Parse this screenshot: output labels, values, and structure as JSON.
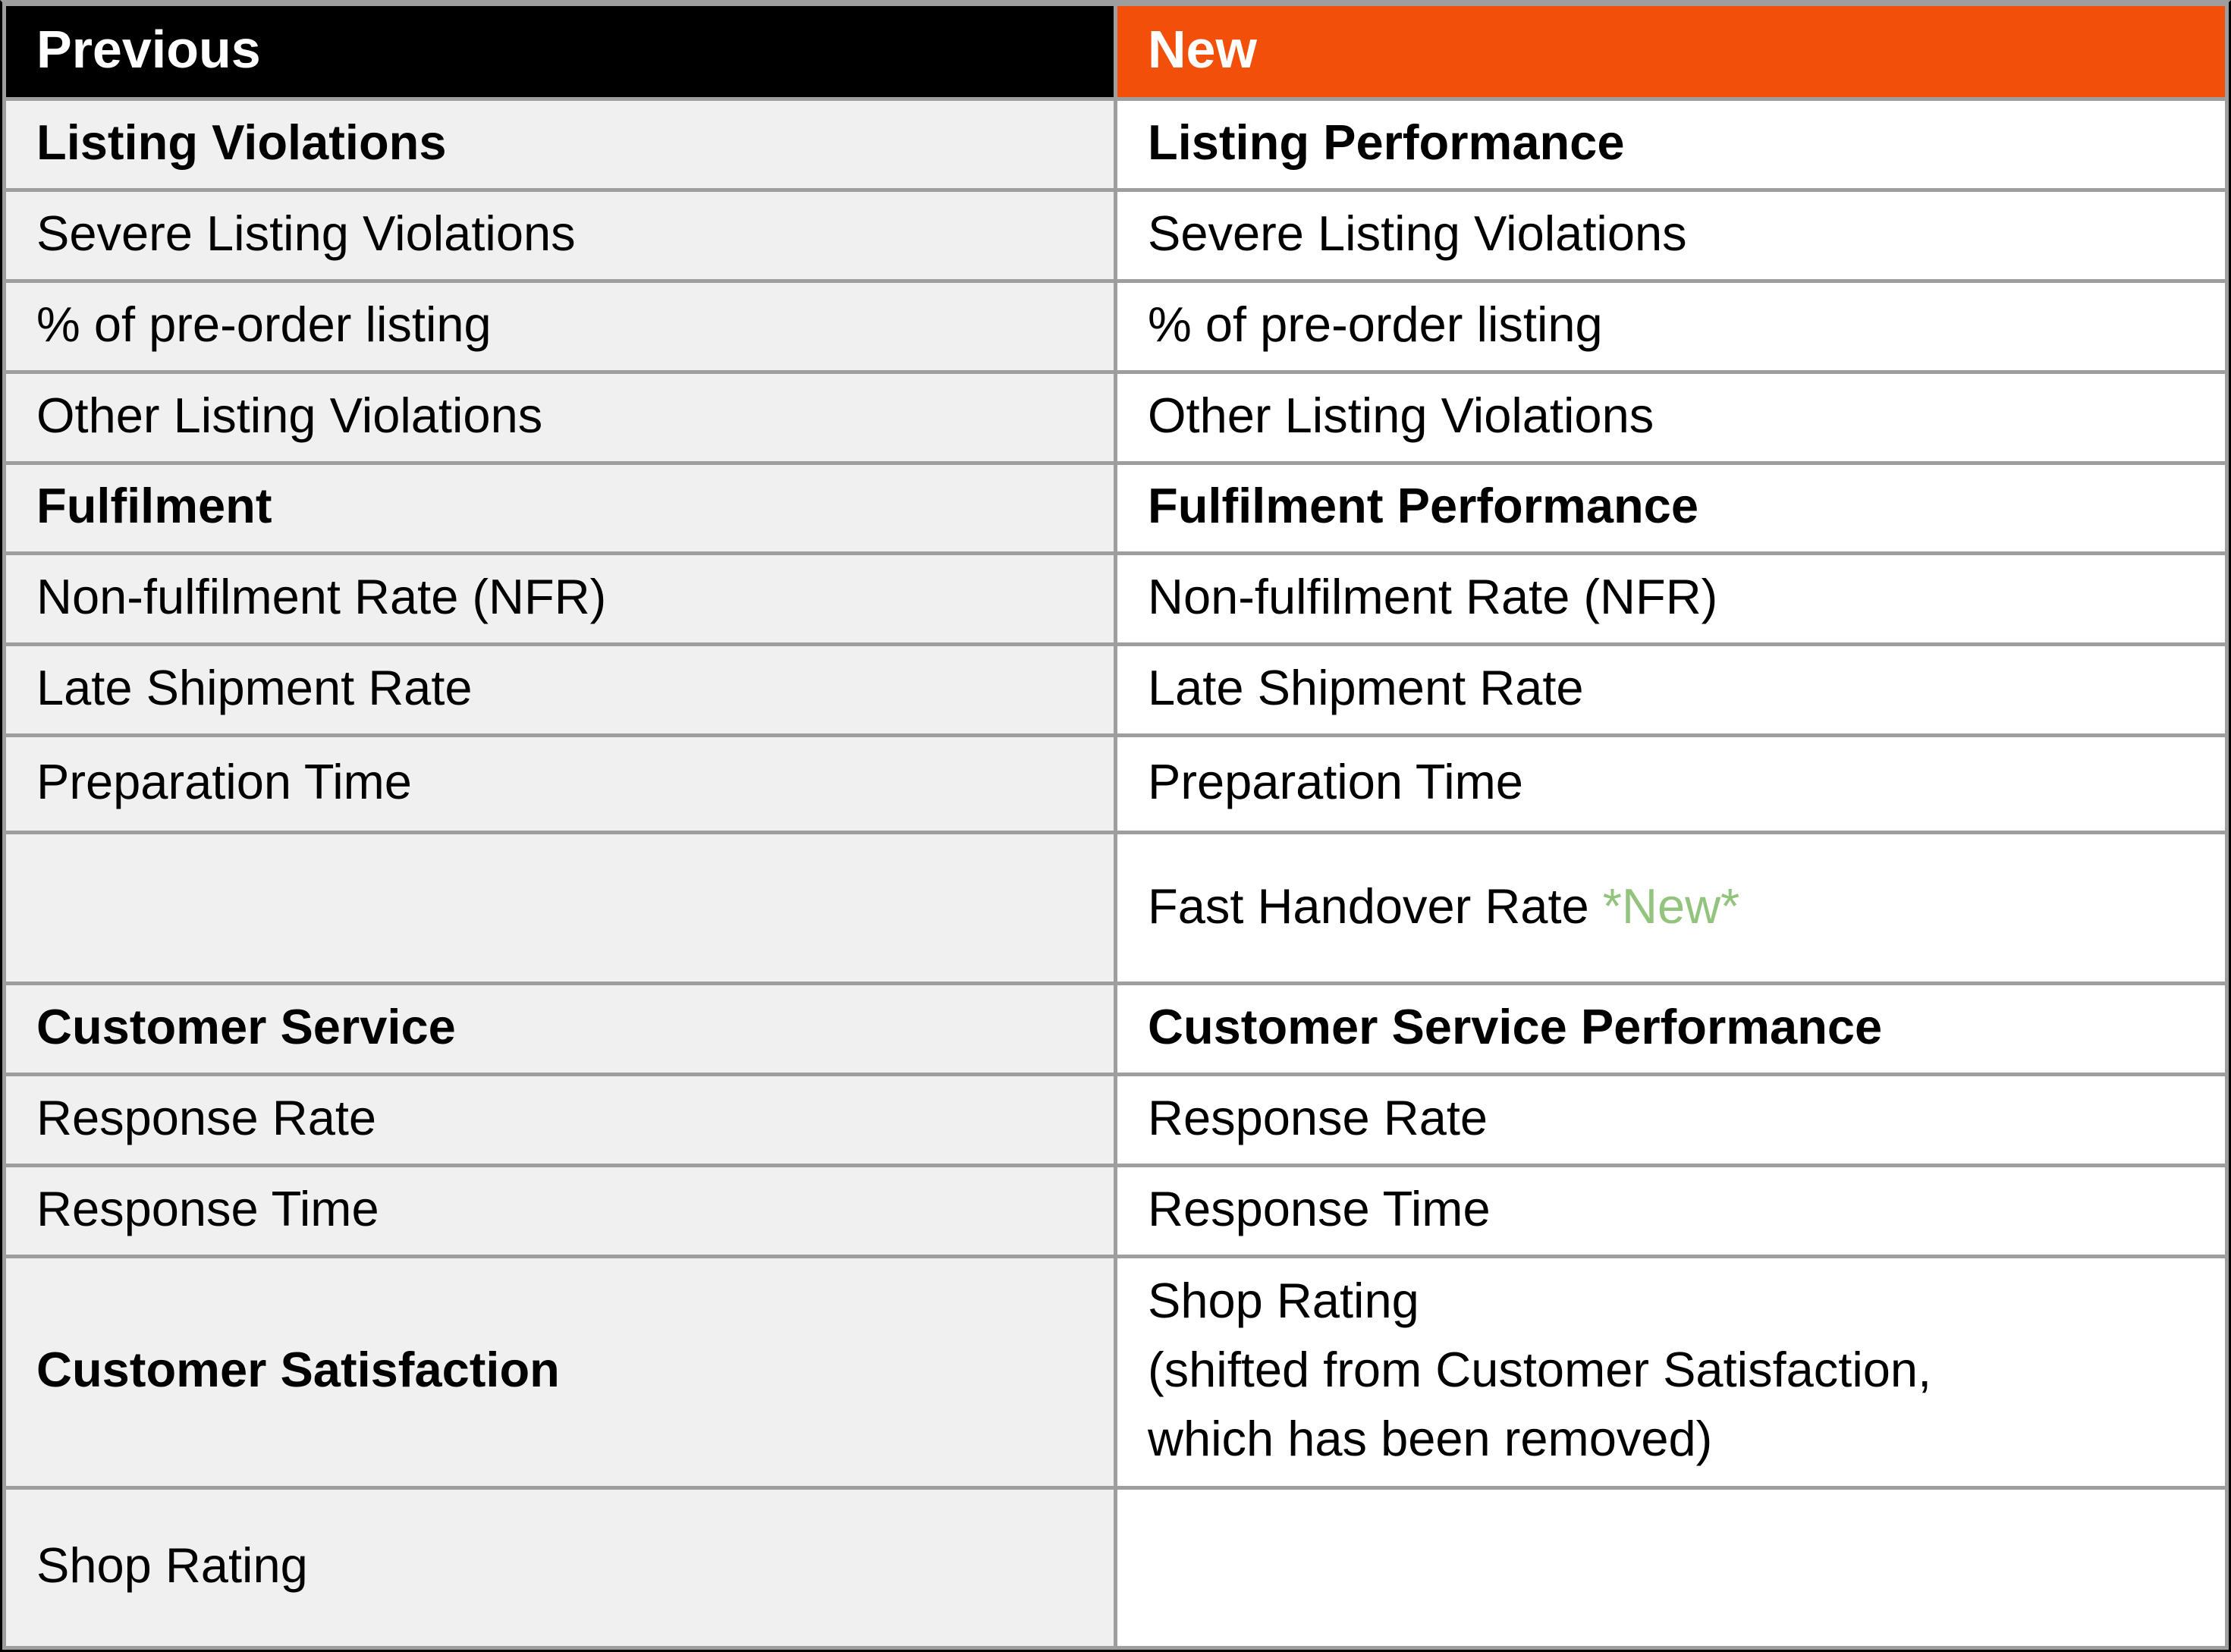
{
  "colors": {
    "header-prev-bg": "#000000",
    "header-new-bg": "#F2500A",
    "header-text": "#FFFFFF",
    "prev-cell-bg": "#F0F0F0",
    "new-cell-bg": "#FFFFFF",
    "grid-border": "#9E9E9E",
    "outer-border": "#000000",
    "text": "#000000",
    "new-badge": "#93C47D"
  },
  "header": {
    "previous": "Previous",
    "new": "New"
  },
  "rows": [
    {
      "prev": "Listing Violations",
      "new": "Listing Performance"
    },
    {
      "prev": "Severe Listing Violations",
      "new": "Severe Listing Violations"
    },
    {
      "prev": "% of pre-order listing",
      "new": "% of pre-order listing"
    },
    {
      "prev": "Other Listing Violations",
      "new": "Other Listing Violations"
    },
    {
      "prev": "Fulfilment",
      "new": "Fulfilment Performance"
    },
    {
      "prev": "Non-fulfilment Rate (NFR)",
      "new": "Non-fulfilment Rate (NFR)"
    },
    {
      "prev": "Late Shipment Rate",
      "new": "Late Shipment Rate"
    },
    {
      "prev": "Preparation Time",
      "new": "Preparation Time"
    },
    {
      "prev": "",
      "new_text": "Fast Handover Rate ",
      "new_badge": "*New*"
    },
    {
      "prev": "Customer Service",
      "new": "Customer Service Performance"
    },
    {
      "prev": "Response Rate",
      "new": "Response Rate"
    },
    {
      "prev": "Response Time",
      "new": "Response Time"
    },
    {
      "prev": "Customer Satisfaction",
      "new": "Shop Rating\n(shifted from Customer Satisfaction,\nwhich has been removed)"
    },
    {
      "prev": "Shop Rating",
      "new": ""
    }
  ]
}
